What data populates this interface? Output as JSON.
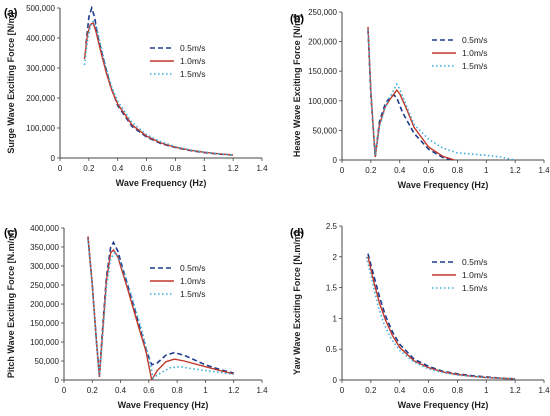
{
  "chart_data": [
    {
      "panel_label": "(a)",
      "type": "line",
      "xlabel": "Wave Frequency (Hz)",
      "ylabel": "Surge Wave Exciting Force [N/m]",
      "xlim": [
        0,
        1.4
      ],
      "ylim": [
        0,
        500000
      ],
      "x_ticks": [
        "0",
        "0.2",
        "0.4",
        "0.6",
        "0.8",
        "1",
        "1.2",
        "1.4"
      ],
      "y_ticks": [
        "0",
        "100,000",
        "200,000",
        "300,000",
        "400,000",
        "500,000"
      ],
      "legend_position": "upper-right",
      "series": [
        {
          "name": "0.5m/s",
          "color": "#1f3b8c",
          "dash": "dashed",
          "points": [
            [
              0.18,
              380000
            ],
            [
              0.2,
              470000
            ],
            [
              0.22,
              500000
            ],
            [
              0.24,
              470000
            ],
            [
              0.26,
              410000
            ],
            [
              0.3,
              330000
            ],
            [
              0.35,
              240000
            ],
            [
              0.4,
              175000
            ],
            [
              0.5,
              105000
            ],
            [
              0.6,
              70000
            ],
            [
              0.7,
              48000
            ],
            [
              0.8,
              35000
            ],
            [
              0.9,
              25000
            ],
            [
              1.0,
              18000
            ],
            [
              1.1,
              13000
            ],
            [
              1.2,
              10000
            ]
          ]
        },
        {
          "name": "1.0m/s",
          "color": "#c0392b",
          "dash": "solid",
          "points": [
            [
              0.17,
              330000
            ],
            [
              0.19,
              410000
            ],
            [
              0.21,
              445000
            ],
            [
              0.23,
              450000
            ],
            [
              0.25,
              420000
            ],
            [
              0.28,
              360000
            ],
            [
              0.32,
              285000
            ],
            [
              0.36,
              225000
            ],
            [
              0.4,
              180000
            ],
            [
              0.5,
              110000
            ],
            [
              0.6,
              73000
            ],
            [
              0.7,
              50000
            ],
            [
              0.8,
              36000
            ],
            [
              0.9,
              26000
            ],
            [
              1.0,
              19000
            ],
            [
              1.1,
              14000
            ],
            [
              1.2,
              10000
            ]
          ]
        },
        {
          "name": "1.5m/s",
          "color": "#3ab0e0",
          "dash": "dotted",
          "points": [
            [
              0.17,
              310000
            ],
            [
              0.19,
              390000
            ],
            [
              0.21,
              440000
            ],
            [
              0.23,
              455000
            ],
            [
              0.25,
              440000
            ],
            [
              0.28,
              380000
            ],
            [
              0.32,
              300000
            ],
            [
              0.36,
              235000
            ],
            [
              0.4,
              190000
            ],
            [
              0.5,
              118000
            ],
            [
              0.6,
              78000
            ],
            [
              0.7,
              54000
            ],
            [
              0.8,
              38000
            ],
            [
              0.9,
              27000
            ],
            [
              1.0,
              20000
            ],
            [
              1.1,
              14000
            ],
            [
              1.2,
              10000
            ]
          ]
        }
      ]
    },
    {
      "panel_label": "(b)",
      "type": "line",
      "xlabel": "Wave Frequency (Hz)",
      "ylabel": "Heave Wave Exciting Force [N/m]",
      "xlim": [
        0,
        1.4
      ],
      "ylim": [
        0,
        250000
      ],
      "x_ticks": [
        "0",
        "0.2",
        "0.4",
        "0.6",
        "0.8",
        "1",
        "1.2",
        "1.4"
      ],
      "y_ticks": [
        "0",
        "50,000",
        "100,000",
        "150,000",
        "200,000",
        "250,000"
      ],
      "legend_position": "upper-right",
      "series": [
        {
          "name": "0.5m/s",
          "color": "#1f3b8c",
          "dash": "dashed",
          "points": [
            [
              0.18,
              220000
            ],
            [
              0.2,
              110000
            ],
            [
              0.23,
              5000
            ],
            [
              0.26,
              65000
            ],
            [
              0.3,
              95000
            ],
            [
              0.33,
              105000
            ],
            [
              0.36,
              110000
            ],
            [
              0.38,
              105000
            ],
            [
              0.42,
              80000
            ],
            [
              0.5,
              45000
            ],
            [
              0.6,
              18000
            ],
            [
              0.7,
              4000
            ],
            [
              0.76,
              0
            ]
          ]
        },
        {
          "name": "1.0m/s",
          "color": "#c0392b",
          "dash": "solid",
          "points": [
            [
              0.18,
              225000
            ],
            [
              0.2,
              115000
            ],
            [
              0.23,
              5000
            ],
            [
              0.26,
              60000
            ],
            [
              0.3,
              90000
            ],
            [
              0.34,
              105000
            ],
            [
              0.38,
              118000
            ],
            [
              0.4,
              112000
            ],
            [
              0.45,
              85000
            ],
            [
              0.5,
              55000
            ],
            [
              0.6,
              22000
            ],
            [
              0.7,
              6000
            ],
            [
              0.78,
              0
            ]
          ]
        },
        {
          "name": "1.5m/s",
          "color": "#3ab0e0",
          "dash": "dotted",
          "points": [
            [
              0.18,
              220000
            ],
            [
              0.2,
              115000
            ],
            [
              0.23,
              8000
            ],
            [
              0.26,
              55000
            ],
            [
              0.3,
              90000
            ],
            [
              0.34,
              110000
            ],
            [
              0.38,
              128000
            ],
            [
              0.4,
              120000
            ],
            [
              0.45,
              90000
            ],
            [
              0.5,
              60000
            ],
            [
              0.6,
              35000
            ],
            [
              0.7,
              20000
            ],
            [
              0.8,
              12000
            ],
            [
              0.9,
              10000
            ],
            [
              1.0,
              8000
            ],
            [
              1.1,
              5000
            ],
            [
              1.2,
              0
            ]
          ]
        }
      ]
    },
    {
      "panel_label": "(c)",
      "type": "line",
      "xlabel": "Wave Frequency (Hz)",
      "ylabel": "Pitch Wave Exciting Force [N.m/m]",
      "xlim": [
        0,
        1.4
      ],
      "ylim": [
        0,
        400000
      ],
      "x_ticks": [
        "0",
        "0.2",
        "0.4",
        "0.6",
        "0.8",
        "1",
        "1.2",
        "1.4"
      ],
      "y_ticks": [
        "0",
        "50,000",
        "100,000",
        "150,000",
        "200,000",
        "250,000",
        "300,000",
        "350,000",
        "400,000"
      ],
      "legend_position": "right",
      "series": [
        {
          "name": "0.5m/s",
          "color": "#1f3b8c",
          "dash": "dashed",
          "points": [
            [
              0.17,
              375000
            ],
            [
              0.2,
              250000
            ],
            [
              0.23,
              100000
            ],
            [
              0.25,
              10000
            ],
            [
              0.27,
              120000
            ],
            [
              0.3,
              270000
            ],
            [
              0.33,
              350000
            ],
            [
              0.35,
              362000
            ],
            [
              0.38,
              340000
            ],
            [
              0.45,
              250000
            ],
            [
              0.52,
              160000
            ],
            [
              0.58,
              80000
            ],
            [
              0.62,
              40000
            ],
            [
              0.66,
              45000
            ],
            [
              0.72,
              65000
            ],
            [
              0.78,
              72000
            ],
            [
              0.85,
              65000
            ],
            [
              1.0,
              40000
            ],
            [
              1.1,
              28000
            ],
            [
              1.2,
              18000
            ]
          ]
        },
        {
          "name": "1.0m/s",
          "color": "#c0392b",
          "dash": "solid",
          "points": [
            [
              0.17,
              378000
            ],
            [
              0.2,
              250000
            ],
            [
              0.23,
              100000
            ],
            [
              0.25,
              8000
            ],
            [
              0.27,
              110000
            ],
            [
              0.3,
              260000
            ],
            [
              0.33,
              335000
            ],
            [
              0.35,
              342000
            ],
            [
              0.38,
              325000
            ],
            [
              0.45,
              240000
            ],
            [
              0.52,
              150000
            ],
            [
              0.58,
              75000
            ],
            [
              0.62,
              0
            ],
            [
              0.66,
              25000
            ],
            [
              0.72,
              48000
            ],
            [
              0.78,
              55000
            ],
            [
              0.85,
              50000
            ],
            [
              1.0,
              35000
            ],
            [
              1.1,
              25000
            ],
            [
              1.2,
              16000
            ]
          ]
        },
        {
          "name": "1.5m/s",
          "color": "#3ab0e0",
          "dash": "dotted",
          "points": [
            [
              0.17,
              370000
            ],
            [
              0.2,
              245000
            ],
            [
              0.23,
              95000
            ],
            [
              0.25,
              12000
            ],
            [
              0.27,
              100000
            ],
            [
              0.3,
              245000
            ],
            [
              0.33,
              320000
            ],
            [
              0.36,
              335000
            ],
            [
              0.4,
              310000
            ],
            [
              0.47,
              230000
            ],
            [
              0.55,
              130000
            ],
            [
              0.6,
              60000
            ],
            [
              0.63,
              5000
            ],
            [
              0.68,
              18000
            ],
            [
              0.75,
              32000
            ],
            [
              0.82,
              35000
            ],
            [
              0.9,
              30000
            ],
            [
              1.0,
              25000
            ],
            [
              1.1,
              20000
            ],
            [
              1.2,
              15000
            ]
          ]
        }
      ]
    },
    {
      "panel_label": "(d)",
      "type": "line",
      "xlabel": "Wave Frequency (Hz)",
      "ylabel": "Yaw Wave Exciting Force [N.m/m]",
      "xlim": [
        0,
        1.4
      ],
      "ylim": [
        0,
        2.5
      ],
      "x_ticks": [
        "0",
        "0.2",
        "0.4",
        "0.6",
        "0.8",
        "1",
        "1.2",
        "1.4"
      ],
      "y_ticks": [
        "0",
        "0.5",
        "1",
        "1.5",
        "2",
        "2.5"
      ],
      "legend_position": "upper-right",
      "series": [
        {
          "name": "0.5m/s",
          "color": "#1f3b8c",
          "dash": "dashed",
          "points": [
            [
              0.18,
              2.05
            ],
            [
              0.22,
              1.7
            ],
            [
              0.26,
              1.35
            ],
            [
              0.3,
              1.05
            ],
            [
              0.35,
              0.78
            ],
            [
              0.4,
              0.58
            ],
            [
              0.5,
              0.34
            ],
            [
              0.6,
              0.22
            ],
            [
              0.7,
              0.14
            ],
            [
              0.8,
              0.1
            ],
            [
              0.9,
              0.07
            ],
            [
              1.0,
              0.05
            ],
            [
              1.1,
              0.03
            ],
            [
              1.2,
              0.02
            ]
          ]
        },
        {
          "name": "1.0m/s",
          "color": "#c0392b",
          "dash": "solid",
          "points": [
            [
              0.18,
              2.0
            ],
            [
              0.22,
              1.6
            ],
            [
              0.26,
              1.25
            ],
            [
              0.3,
              0.98
            ],
            [
              0.35,
              0.72
            ],
            [
              0.4,
              0.53
            ],
            [
              0.5,
              0.31
            ],
            [
              0.6,
              0.2
            ],
            [
              0.7,
              0.13
            ],
            [
              0.8,
              0.09
            ],
            [
              0.9,
              0.06
            ],
            [
              1.0,
              0.04
            ],
            [
              1.1,
              0.03
            ],
            [
              1.2,
              0.02
            ]
          ]
        },
        {
          "name": "1.5m/s",
          "color": "#3ab0e0",
          "dash": "dotted",
          "points": [
            [
              0.17,
              2.0
            ],
            [
              0.21,
              1.6
            ],
            [
              0.25,
              1.2
            ],
            [
              0.29,
              0.92
            ],
            [
              0.34,
              0.67
            ],
            [
              0.4,
              0.48
            ],
            [
              0.5,
              0.29
            ],
            [
              0.6,
              0.18
            ],
            [
              0.7,
              0.12
            ],
            [
              0.8,
              0.08
            ],
            [
              0.9,
              0.06
            ],
            [
              1.0,
              0.04
            ],
            [
              1.1,
              0.03
            ],
            [
              1.2,
              0.02
            ]
          ]
        }
      ]
    }
  ]
}
